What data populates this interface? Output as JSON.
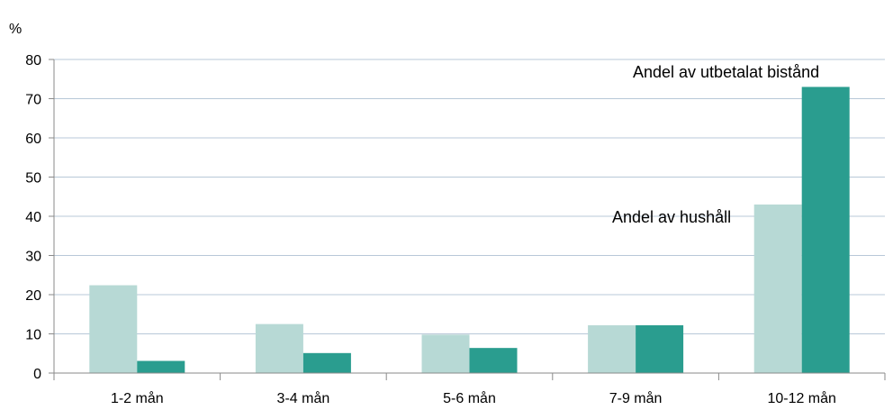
{
  "chart_data": {
    "type": "bar",
    "unit_label": "%",
    "categories": [
      "1-2 mån",
      "3-4 mån",
      "5-6 mån",
      "7-9 mån",
      "10-12 mån"
    ],
    "series": [
      {
        "name": "Andel av hushåll",
        "color": "#b7d9d5",
        "values": [
          22.4,
          12.5,
          9.8,
          12.2,
          43.0
        ]
      },
      {
        "name": "Andel av utbetalat bistånd",
        "color": "#2a9d8f",
        "values": [
          3.1,
          5.1,
          6.4,
          12.2,
          73.0
        ]
      }
    ],
    "ylim": [
      0,
      80
    ],
    "yticks": [
      0,
      10,
      20,
      30,
      40,
      50,
      60,
      70,
      80
    ],
    "grid": true,
    "legend": "inline annotations"
  }
}
